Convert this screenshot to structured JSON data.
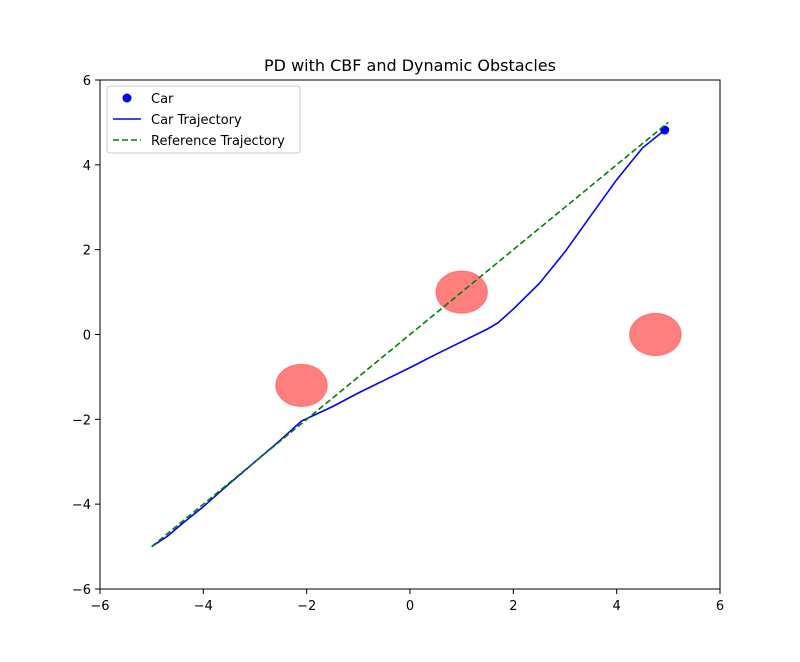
{
  "chart_data": {
    "type": "line",
    "title": "PD with CBF and Dynamic Obstacles",
    "xlabel": "",
    "ylabel": "",
    "xlim": [
      -6,
      6
    ],
    "ylim": [
      -6,
      6
    ],
    "xticks": [
      -6,
      -4,
      -2,
      0,
      2,
      4,
      6
    ],
    "yticks": [
      -6,
      -4,
      -2,
      0,
      2,
      4,
      6
    ],
    "xtick_labels": [
      "−6",
      "−4",
      "−2",
      "0",
      "2",
      "4",
      "6"
    ],
    "ytick_labels": [
      "−6",
      "−4",
      "−2",
      "0",
      "2",
      "4",
      "6"
    ],
    "grid": false,
    "legend_position": "top-left",
    "series": [
      {
        "name": "Car",
        "kind": "point",
        "color": "#0000ff",
        "points": [
          [
            4.93,
            4.82
          ]
        ]
      },
      {
        "name": "Car Trajectory",
        "kind": "solid-line",
        "color": "#0000ff",
        "points": [
          [
            -5.0,
            -5.0
          ],
          [
            -4.7,
            -4.76
          ],
          [
            -4.4,
            -4.45
          ],
          [
            -4.0,
            -4.06
          ],
          [
            -3.5,
            -3.52
          ],
          [
            -3.0,
            -3.0
          ],
          [
            -2.5,
            -2.48
          ],
          [
            -2.1,
            -2.04
          ],
          [
            -1.5,
            -1.7
          ],
          [
            -1.0,
            -1.38
          ],
          [
            -0.5,
            -1.08
          ],
          [
            0.0,
            -0.78
          ],
          [
            0.5,
            -0.47
          ],
          [
            1.0,
            -0.17
          ],
          [
            1.5,
            0.13
          ],
          [
            1.7,
            0.27
          ],
          [
            2.0,
            0.6
          ],
          [
            2.5,
            1.2
          ],
          [
            3.0,
            1.95
          ],
          [
            3.5,
            2.8
          ],
          [
            4.0,
            3.65
          ],
          [
            4.5,
            4.4
          ],
          [
            4.93,
            4.82
          ]
        ]
      },
      {
        "name": "Reference Trajectory",
        "kind": "dashed-line",
        "color": "#008000",
        "points": [
          [
            -5.0,
            -5.0
          ],
          [
            5.0,
            5.0
          ]
        ]
      }
    ],
    "obstacles": [
      {
        "center": [
          -2.1,
          -1.2
        ],
        "radius_x": 0.5,
        "radius_y": 0.5,
        "color": "#ff0000",
        "opacity": 0.5
      },
      {
        "center": [
          1.0,
          1.0
        ],
        "radius_x": 0.5,
        "radius_y": 0.5,
        "color": "#ff0000",
        "opacity": 0.5
      },
      {
        "center": [
          4.75,
          0.0
        ],
        "radius_x": 0.5,
        "radius_y": 0.5,
        "color": "#ff0000",
        "opacity": 0.5
      }
    ]
  }
}
